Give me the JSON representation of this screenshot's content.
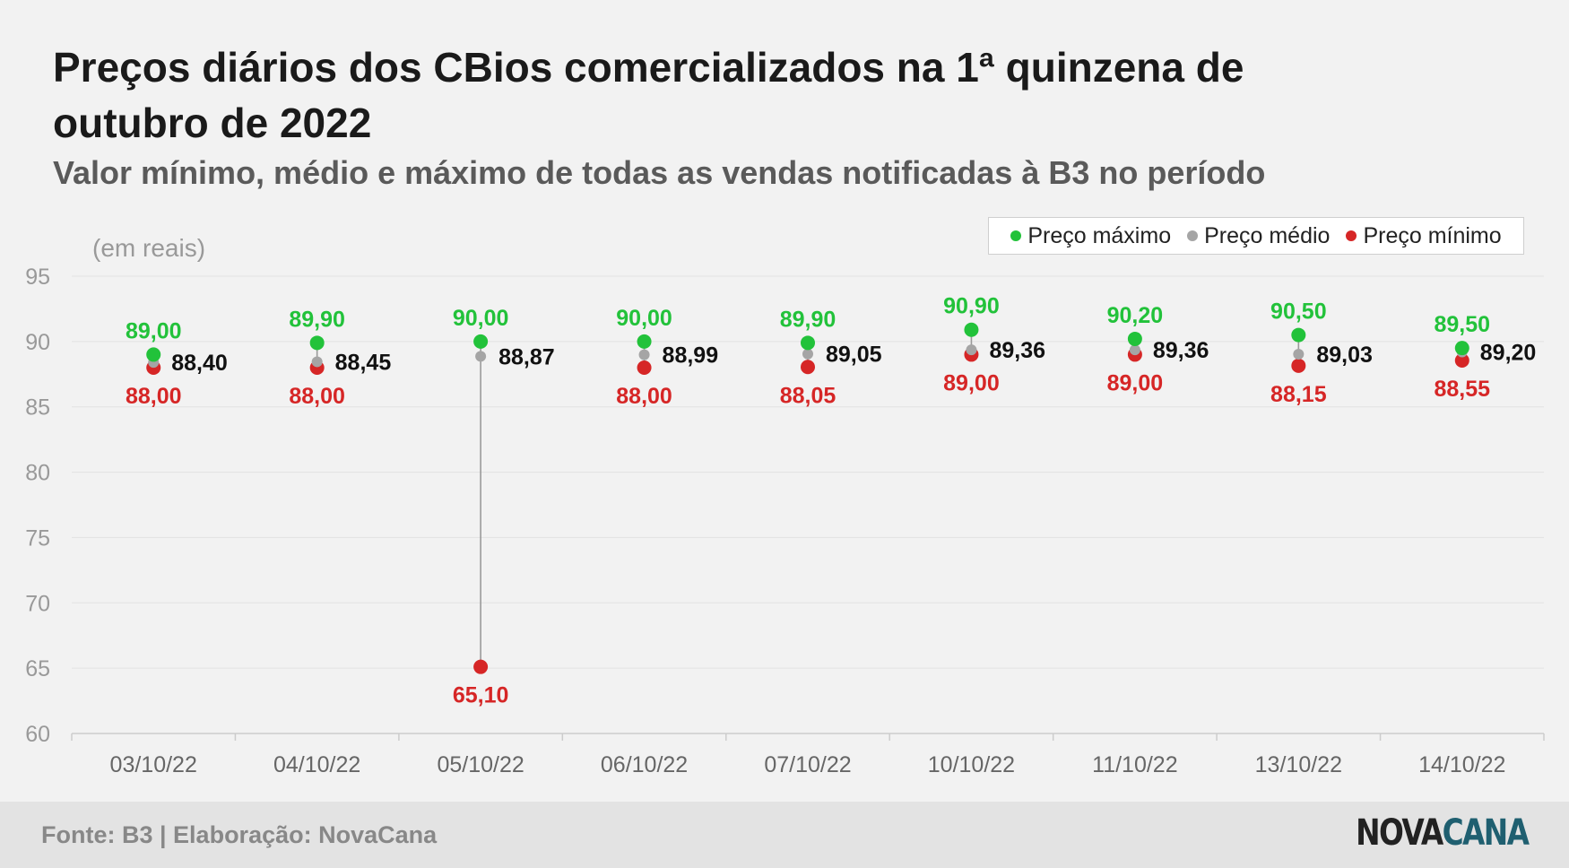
{
  "title": "Preços diários dos CBios comercializados na 1ª quinzena de outubro de 2022",
  "subtitle": "Valor mínimo, médio e máximo de todas as vendas notificadas à B3 no período",
  "unit_label": "(em reais)",
  "source": "Fonte: B3 | Elaboração: NovaCana",
  "logo": {
    "part1": "NOVA",
    "part2": "CANA"
  },
  "colors": {
    "max": "#22c23a",
    "avg": "#a5a5a5",
    "min": "#d62626",
    "label_avg": "#111111",
    "grid": "#e2e2e2",
    "axis_text": "#999999"
  },
  "chart_data": {
    "type": "scatter",
    "categories": [
      "03/10/22",
      "04/10/22",
      "05/10/22",
      "06/10/22",
      "07/10/22",
      "10/10/22",
      "11/10/22",
      "13/10/22",
      "14/10/22"
    ],
    "series": [
      {
        "name": "Preço máximo",
        "values": [
          89.0,
          89.9,
          90.0,
          90.0,
          89.9,
          90.9,
          90.2,
          90.5,
          89.5
        ],
        "labels": [
          "89,00",
          "89,90",
          "90,00",
          "90,00",
          "89,90",
          "90,90",
          "90,20",
          "90,50",
          "89,50"
        ]
      },
      {
        "name": "Preço médio",
        "values": [
          88.4,
          88.45,
          88.87,
          88.99,
          89.05,
          89.36,
          89.36,
          89.03,
          89.2
        ],
        "labels": [
          "88,40",
          "88,45",
          "88,87",
          "88,99",
          "89,05",
          "89,36",
          "89,36",
          "89,03",
          "89,20"
        ]
      },
      {
        "name": "Preço mínimo",
        "values": [
          88.0,
          88.0,
          65.1,
          88.0,
          88.05,
          89.0,
          89.0,
          88.15,
          88.55
        ],
        "labels": [
          "88,00",
          "88,00",
          "65,10",
          "88,00",
          "88,05",
          "89,00",
          "89,00",
          "88,15",
          "88,55"
        ]
      }
    ],
    "ylim": [
      60,
      95
    ],
    "yticks": [
      60,
      65,
      70,
      75,
      80,
      85,
      90,
      95
    ],
    "grid": true,
    "legend_position": "top-right"
  }
}
